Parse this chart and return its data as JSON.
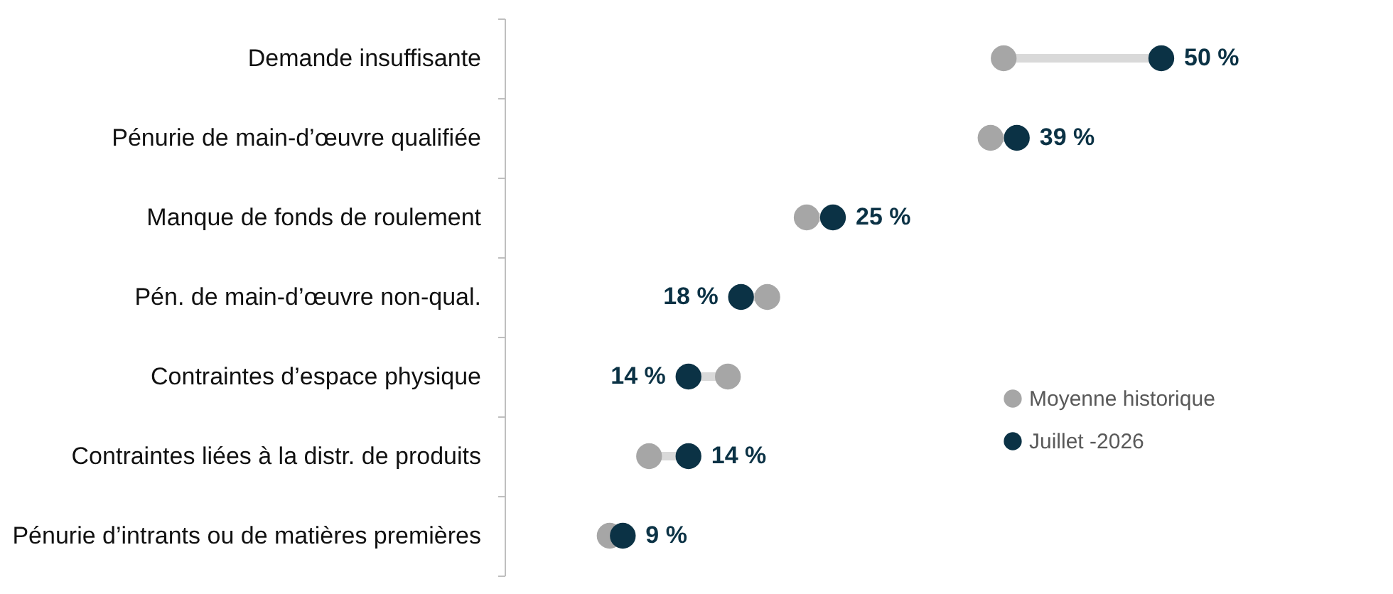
{
  "chart_data": {
    "type": "scatter",
    "orientation": "horizontal",
    "categories": [
      "Demande insuffisante",
      "Pénurie de main-d’œuvre qualifiée",
      "Manque de fonds de roulement",
      "Pén. de main-d’œuvre non-qual.",
      "Contraintes d’espace physique",
      "Contraintes liées à la distr. de produits",
      "Pénurie d’intrants ou de matières premières"
    ],
    "tick_labels": "y",
    "legend": "bottom right",
    "marker": "circle",
    "series": [
      {
        "name": "Moyenne historique",
        "color": "#a6a6a6",
        "values": [
          38,
          37,
          23,
          20,
          17,
          11,
          8
        ]
      },
      {
        "name": "Juillet -2026",
        "color": "#0b3245",
        "values": [
          50,
          39,
          25,
          18,
          14,
          14,
          9
        ],
        "value_labels": [
          "50 %",
          "39 %",
          "25 %",
          "18 %",
          "14 %",
          "14 %",
          "9 %"
        ]
      }
    ]
  }
}
